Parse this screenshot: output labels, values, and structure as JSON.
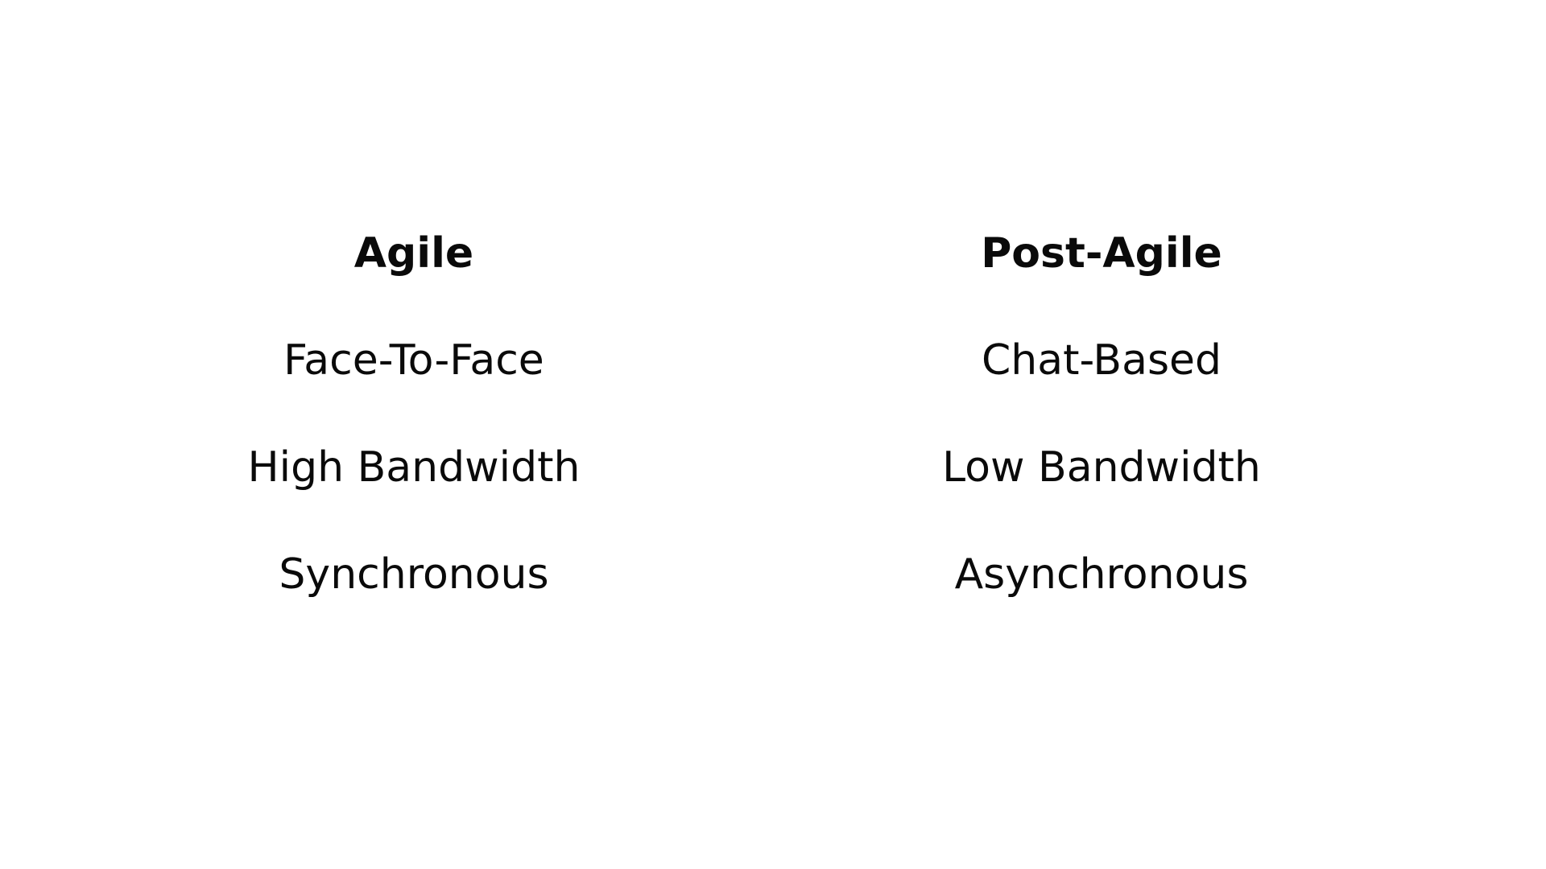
{
  "columns": [
    {
      "heading": "Agile",
      "items": [
        "Face-To-Face",
        "High Bandwidth",
        "Synchronous"
      ]
    },
    {
      "heading": "Post-Agile",
      "items": [
        "Chat-Based",
        "Low Bandwidth",
        "Asynchronous"
      ]
    }
  ]
}
